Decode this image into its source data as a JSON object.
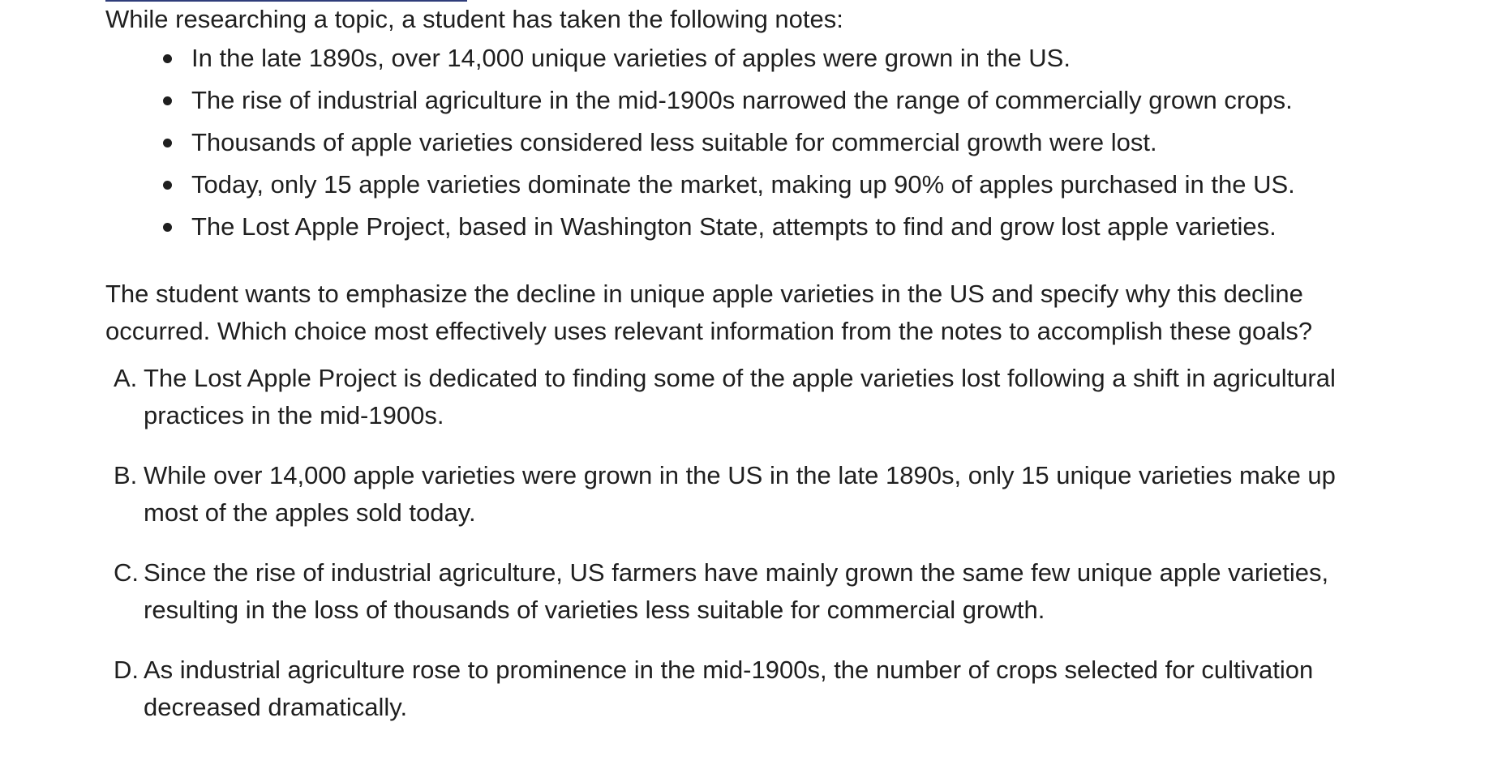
{
  "intro": "While researching a topic, a student has taken the following notes:",
  "notes": [
    "In the late 1890s, over 14,000 unique varieties of apples were grown in the US.",
    "The rise of industrial agriculture in the mid-1900s narrowed the range of commercially grown crops.",
    "Thousands of apple varieties considered less suitable for commercial growth were lost.",
    "Today, only 15 apple varieties dominate the market, making up 90% of apples purchased in the US.",
    "The Lost Apple Project, based in Washington State, attempts to find and grow lost apple varieties."
  ],
  "question": "The student wants to emphasize the decline in unique apple varieties in the US and specify why this decline occurred. Which choice most effectively uses relevant information from the notes to accomplish these goals?",
  "choices": [
    {
      "letter": "A.",
      "text": "The Lost Apple Project is dedicated to finding some of the apple varieties lost following a shift in agricultural practices in the mid-1900s."
    },
    {
      "letter": "B.",
      "text": "While over 14,000 apple varieties were grown in the US in the late 1890s, only 15 unique varieties make up most of the apples sold today."
    },
    {
      "letter": "C.",
      "text": "Since the rise of industrial agriculture, US farmers have mainly grown the same few unique apple varieties, resulting in the loss of thousands of varieties less suitable for commercial growth."
    },
    {
      "letter": "D.",
      "text": "As industrial agriculture rose to prominence in the mid-1900s, the number of crops selected for cultivation decreased dramatically."
    }
  ],
  "colors": {
    "text": "#1f1f1f",
    "top_rule": "#2f3d7a",
    "background": "#ffffff"
  }
}
